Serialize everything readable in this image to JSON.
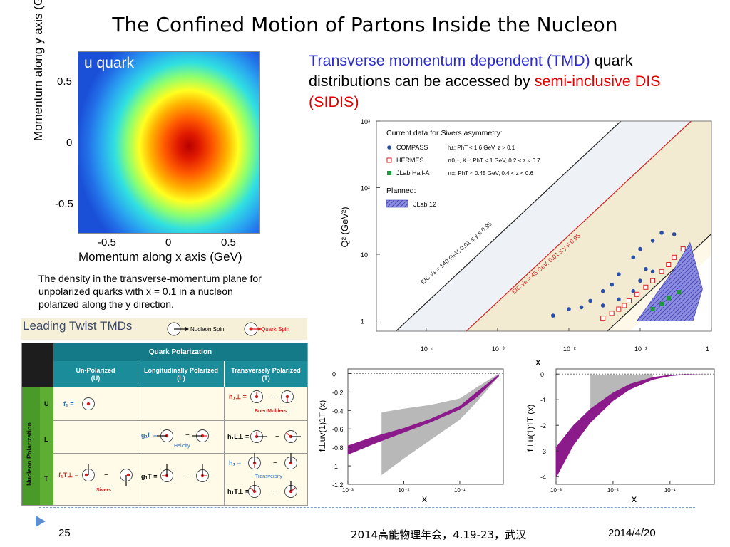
{
  "slide": {
    "title": "The Confined Motion of Partons Inside the Nucleon",
    "page_number": "25",
    "conference": "2014高能物理年会，4.19-23，武汉",
    "date": "2014/4/20"
  },
  "heatmap": {
    "label": "u quark",
    "xlabel": "Momentum along x axis (GeV)",
    "ylabel": "Momentum along y axis (GeV)",
    "xticks": [
      "-0.5",
      "0",
      "0.5"
    ],
    "yticks": [
      "0.5",
      "0",
      "-0.5"
    ],
    "caption": "The density in the transverse-momentum plane for unpolarized quarks with x = 0.1 in a nucleon polarized along the y direction."
  },
  "text": {
    "part1": "Transverse momentum dependent (TMD)",
    "part2": " quark distributions can be accessed by ",
    "part3": "semi-inclusive DIS (SIDIS)"
  },
  "table": {
    "banner_title": "Leading Twist TMDs",
    "legend_nucleon": "Nucleon Spin",
    "legend_quark": "Quark Spin",
    "quark_pol": "Quark Polarization",
    "col_u": "Un-Polarized\n(U)",
    "col_l": "Longitudinally Polarized\n(L)",
    "col_t": "Transversely Polarized\n(T)",
    "nucleon_pol": "Nucleon Polarization",
    "row_u": "U",
    "row_l": "L",
    "row_t": "T",
    "f1": "f₁ =",
    "h1perp": "h₁⊥ =",
    "boer_mulders": "Boer-Mulders",
    "g1l": "g₁L =",
    "helicity": "Helicity",
    "h1l": "h₁L⊥ =",
    "f1t": "f₁T⊥ =",
    "sivers": "Sivers",
    "g1t": "g₁T =",
    "h1": "h₁ =",
    "transversity": "Transversity",
    "h1t": "h₁T⊥ =",
    "minus": "−"
  },
  "chart_data": [
    {
      "type": "scatter",
      "title": "Current data for Sivers asymmetry:",
      "xlabel": "x",
      "ylabel": "Q² (GeV²)",
      "xscale": "log",
      "yscale": "log",
      "xlim": [
        2e-05,
        1
      ],
      "ylim": [
        0.7,
        1000
      ],
      "xticks": [
        "10⁻⁴",
        "10⁻³",
        "10⁻²",
        "10⁻¹",
        "1"
      ],
      "yticks": [
        "10³",
        "10²",
        "10",
        "1"
      ],
      "legend": [
        {
          "name": "COMPASS",
          "detail": "h±: PhT < 1.6 GeV,  z > 0.1",
          "marker": "filled-circle",
          "color": "#2a4fa8"
        },
        {
          "name": "HERMES",
          "detail": "π0,±, K±: PhT < 1 GeV, 0.2 < z < 0.7",
          "marker": "open-square",
          "color": "#d62020"
        },
        {
          "name": "JLab Hall-A",
          "detail": "π±: PhT < 0.45 GeV,  0.4 < z < 0.6",
          "marker": "filled-square",
          "color": "#1a9a3a"
        }
      ],
      "planned_label": "Planned:",
      "planned": {
        "name": "JLab 12",
        "color": "#6a6ad8"
      },
      "band_labels": [
        "EIC √s = 140 GeV, 0.01 ≤ y ≤ 0.95",
        "EIC √s = 45 GeV, 0.01 ≤ y ≤ 0.95"
      ],
      "series": [
        {
          "name": "COMPASS",
          "points": [
            [
              0.006,
              1.2
            ],
            [
              0.01,
              1.5
            ],
            [
              0.015,
              1.6
            ],
            [
              0.02,
              2.0
            ],
            [
              0.03,
              2.8
            ],
            [
              0.04,
              3.5
            ],
            [
              0.05,
              5
            ],
            [
              0.08,
              9
            ],
            [
              0.1,
              12
            ],
            [
              0.15,
              16
            ],
            [
              0.2,
              21
            ],
            [
              0.3,
              20
            ],
            [
              0.05,
              2.1
            ],
            [
              0.08,
              2.8
            ],
            [
              0.1,
              4
            ],
            [
              0.15,
              5.5
            ],
            [
              0.03,
              1.7
            ],
            [
              0.12,
              6
            ]
          ]
        },
        {
          "name": "HERMES",
          "points": [
            [
              0.03,
              1.1
            ],
            [
              0.04,
              1.3
            ],
            [
              0.05,
              1.5
            ],
            [
              0.06,
              1.7
            ],
            [
              0.07,
              2.0
            ],
            [
              0.09,
              2.5
            ],
            [
              0.12,
              3.2
            ],
            [
              0.15,
              4.0
            ],
            [
              0.2,
              5.5
            ],
            [
              0.25,
              7
            ],
            [
              0.3,
              9
            ],
            [
              0.4,
              12
            ]
          ]
        },
        {
          "name": "JLab Hall-A",
          "points": [
            [
              0.15,
              1.5
            ],
            [
              0.2,
              1.8
            ],
            [
              0.25,
              2.2
            ],
            [
              0.35,
              2.7
            ]
          ]
        }
      ]
    },
    {
      "type": "area",
      "xlabel": "x",
      "ylabel": "f⊥uv(1)1T (x)",
      "xscale": "log",
      "xlim": [
        0.001,
        0.6
      ],
      "ylim": [
        -1.2,
        0.05
      ],
      "xticks": [
        "10⁻³",
        "10⁻²",
        "10⁻¹"
      ],
      "yticks": [
        "0",
        "-0.2",
        "-0.4",
        "-0.6",
        "-0.8",
        "-1",
        "-1.2"
      ],
      "series": [
        {
          "name": "band",
          "color": "#8b1a8b",
          "x": [
            0.001,
            0.003,
            0.01,
            0.03,
            0.1,
            0.2,
            0.5
          ],
          "low": [
            -0.88,
            -0.76,
            -0.64,
            -0.53,
            -0.39,
            -0.26,
            -0.03
          ],
          "high": [
            -0.78,
            -0.68,
            -0.59,
            -0.49,
            -0.35,
            -0.2,
            -0.01
          ]
        },
        {
          "name": "gray",
          "color": "#b8b8b8",
          "x": [
            0.004,
            0.01,
            0.03,
            0.1,
            0.2,
            0.5
          ],
          "low": [
            -1.1,
            -0.92,
            -0.72,
            -0.5,
            -0.31,
            -0.03
          ],
          "high": [
            -0.42,
            -0.38,
            -0.34,
            -0.27,
            -0.15,
            0
          ]
        }
      ]
    },
    {
      "type": "area",
      "xlabel": "x",
      "ylabel": "f⊥ū(1)1T (x)",
      "xscale": "log",
      "xlim": [
        0.001,
        0.6
      ],
      "ylim": [
        -4.3,
        0.2
      ],
      "xticks": [
        "10⁻³",
        "10⁻²",
        "10⁻¹"
      ],
      "yticks": [
        "0",
        "-1",
        "-2",
        "-3",
        "-4"
      ],
      "series": [
        {
          "name": "band",
          "color": "#8b1a8b",
          "x": [
            0.001,
            0.002,
            0.004,
            0.01,
            0.02,
            0.05,
            0.1,
            0.2,
            0.5
          ],
          "low": [
            -4.05,
            -2.8,
            -1.9,
            -1.05,
            -0.6,
            -0.22,
            -0.08,
            -0.02,
            0
          ],
          "high": [
            -2.85,
            -2.0,
            -1.35,
            -0.72,
            -0.38,
            -0.12,
            -0.03,
            -0.005,
            0
          ]
        },
        {
          "name": "gray",
          "color": "#b8b8b8",
          "x": [
            0.004,
            0.006,
            0.01,
            0.02,
            0.05
          ],
          "low": [
            -1.45,
            -1.2,
            -0.9,
            -0.5,
            -0.1
          ],
          "high": [
            -0.02,
            -0.02,
            -0.02,
            -0.02,
            -0.01
          ]
        }
      ]
    }
  ]
}
